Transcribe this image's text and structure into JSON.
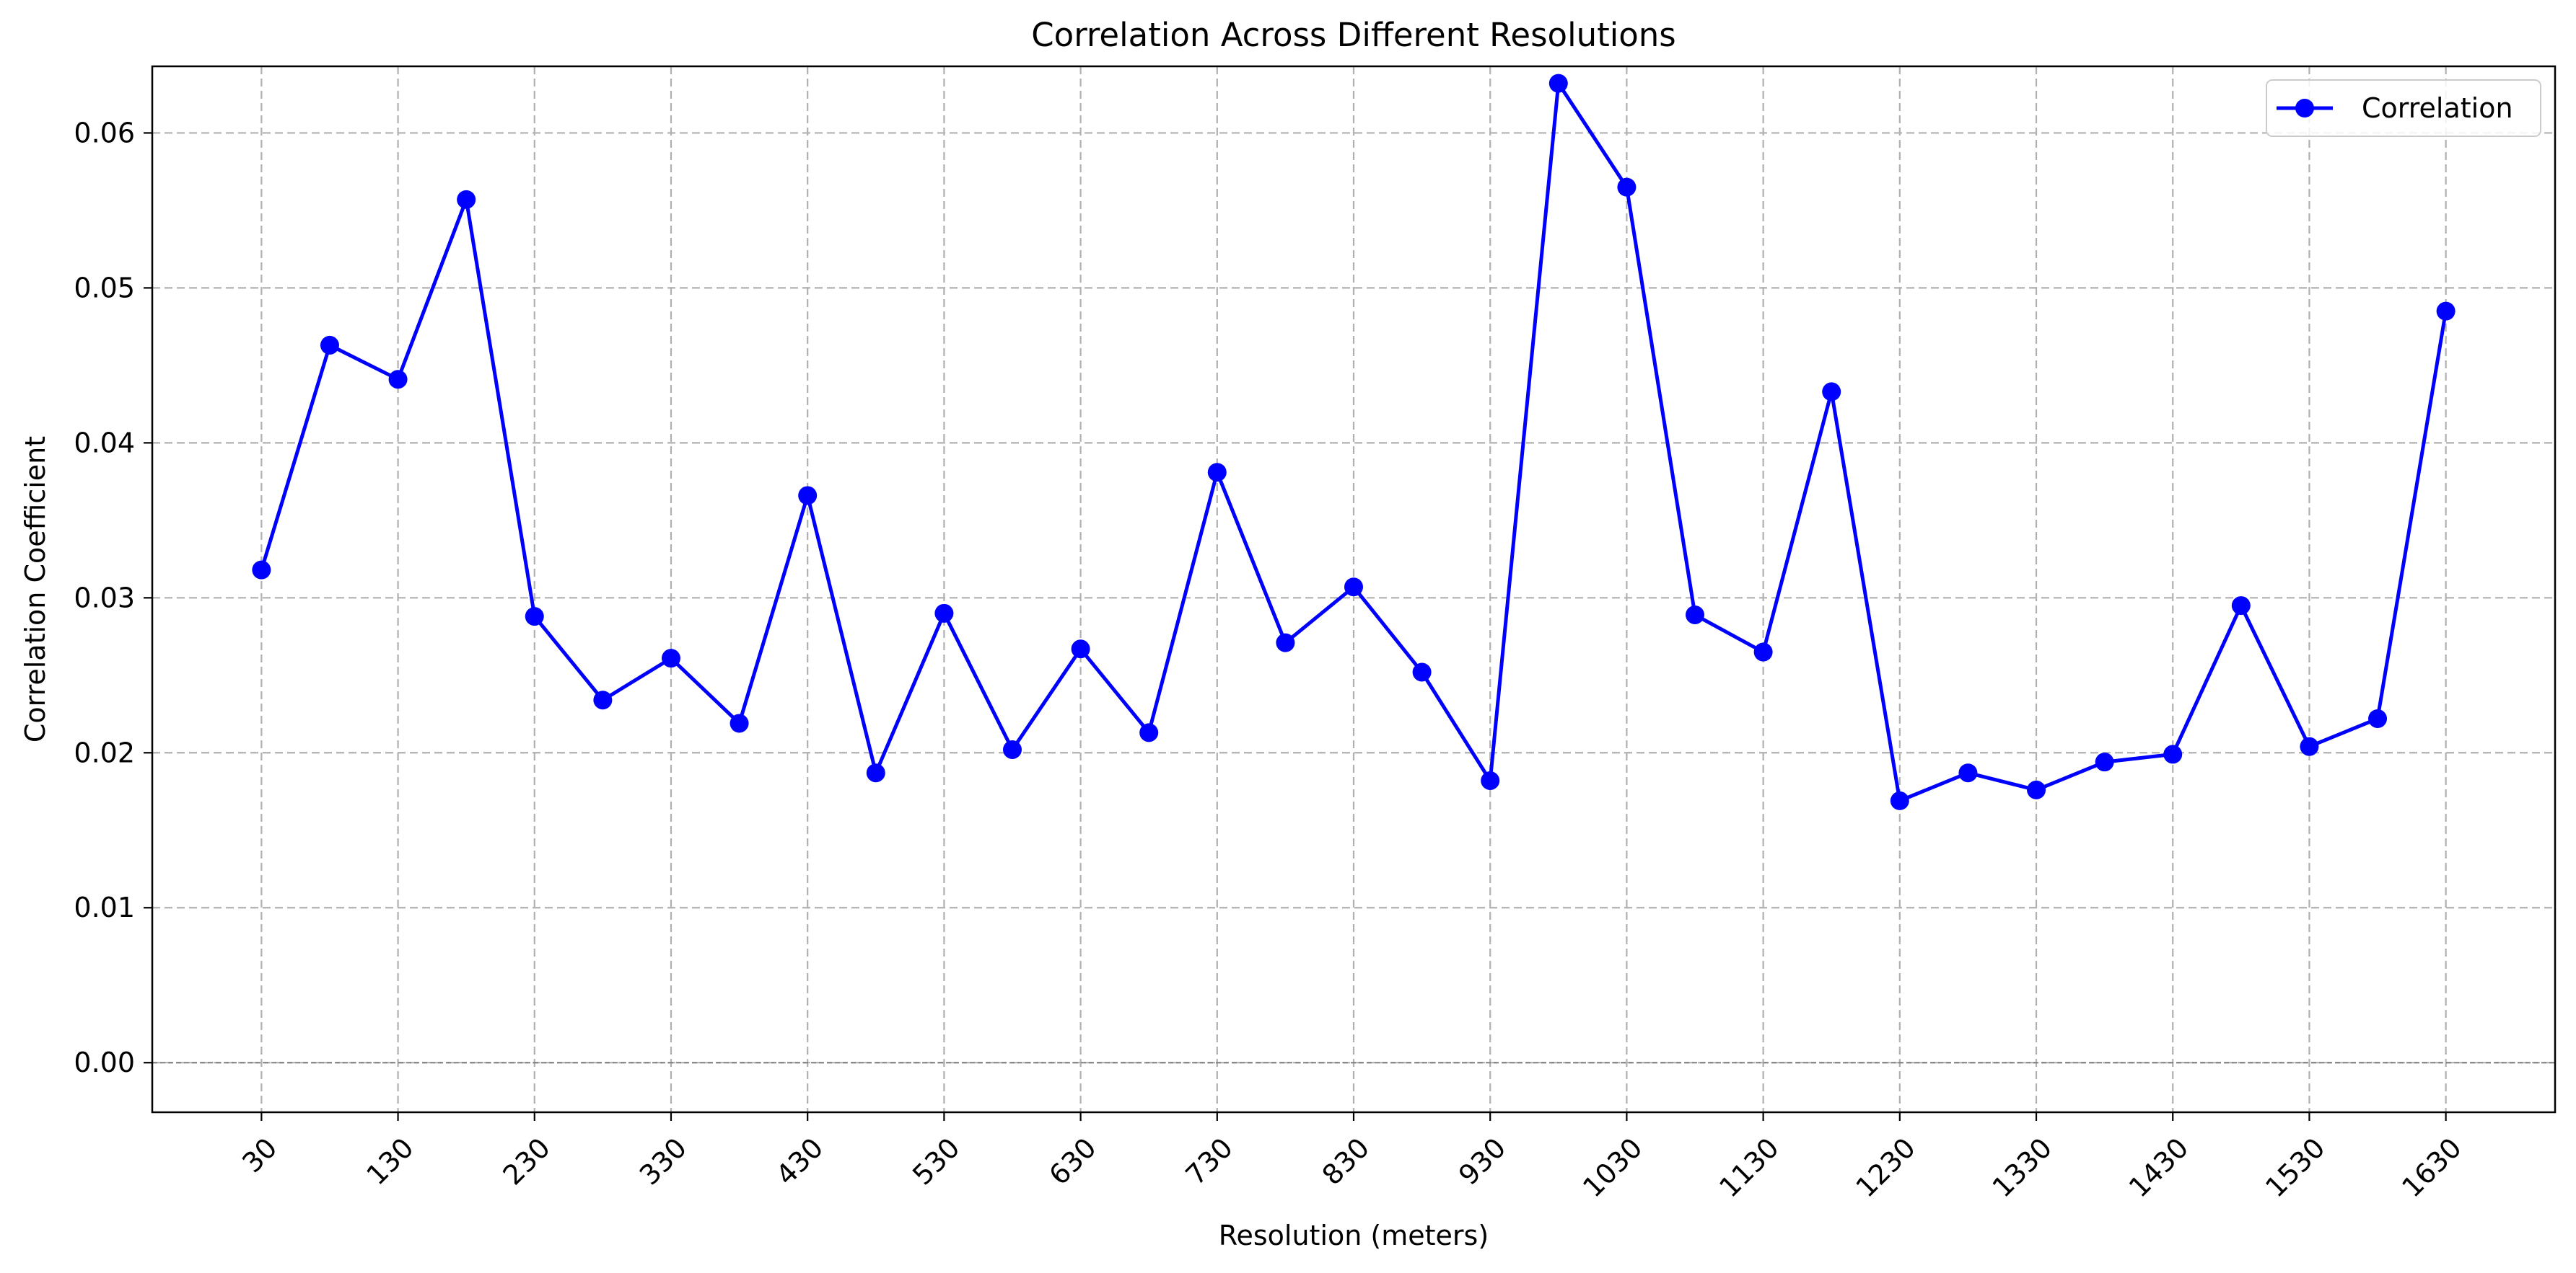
{
  "chart_data": {
    "type": "line",
    "title": "Correlation Across Different Resolutions",
    "xlabel": "Resolution (meters)",
    "ylabel": "Correlation Coefficient",
    "x": [
      30,
      80,
      130,
      180,
      230,
      280,
      330,
      380,
      430,
      480,
      530,
      580,
      630,
      680,
      730,
      780,
      830,
      880,
      930,
      980,
      1030,
      1080,
      1130,
      1180,
      1230,
      1280,
      1330,
      1380,
      1430,
      1480,
      1530,
      1580,
      1630
    ],
    "series": [
      {
        "name": "Correlation",
        "color": "#0000ff",
        "marker": "circle",
        "values": [
          0.0318,
          0.0463,
          0.0441,
          0.0557,
          0.0288,
          0.0234,
          0.0261,
          0.0219,
          0.0366,
          0.0187,
          0.029,
          0.0202,
          0.0267,
          0.0213,
          0.0381,
          0.0271,
          0.0307,
          0.0252,
          0.0182,
          0.0632,
          0.0565,
          0.0289,
          0.0265,
          0.0433,
          0.0169,
          0.0187,
          0.0176,
          0.0194,
          0.0199,
          0.0295,
          0.0204,
          0.0222,
          0.0485
        ]
      }
    ],
    "xticks": [
      30,
      130,
      230,
      330,
      430,
      530,
      630,
      730,
      830,
      930,
      1030,
      1130,
      1230,
      1330,
      1430,
      1530,
      1630
    ],
    "xtick_labels": [
      "30",
      "130",
      "230",
      "330",
      "430",
      "530",
      "630",
      "730",
      "830",
      "930",
      "1030",
      "1130",
      "1230",
      "1330",
      "1430",
      "1530",
      "1630"
    ],
    "yticks": [
      0.0,
      0.01,
      0.02,
      0.03,
      0.04,
      0.05,
      0.06
    ],
    "ytick_labels": [
      "0.00",
      "0.01",
      "0.02",
      "0.03",
      "0.04",
      "0.05",
      "0.06"
    ],
    "xlim": [
      -50,
      1710
    ],
    "ylim": [
      -0.0032,
      0.0643
    ],
    "grid": true,
    "zero_reference_line": true,
    "legend": {
      "position": "top-right",
      "entries": [
        "Correlation"
      ]
    }
  }
}
